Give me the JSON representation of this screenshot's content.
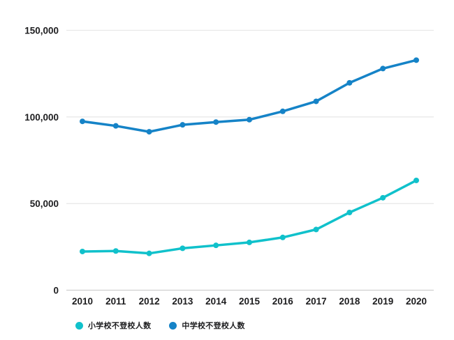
{
  "chart_data": {
    "type": "line",
    "title": "",
    "xlabel": "",
    "ylabel": "",
    "x": [
      "2010",
      "2011",
      "2012",
      "2013",
      "2014",
      "2015",
      "2016",
      "2017",
      "2018",
      "2019",
      "2020"
    ],
    "series": [
      {
        "name": "小学校不登校人数",
        "color": "#10c1cb",
        "values": [
          22327,
          22622,
          21243,
          24175,
          25864,
          27583,
          30448,
          35032,
          44841,
          53350,
          63350
        ]
      },
      {
        "name": "中学校不登校人数",
        "color": "#1583c7",
        "values": [
          97428,
          94836,
          91446,
          95442,
          97033,
          98408,
          103235,
          108999,
          119687,
          127922,
          132777
        ]
      }
    ],
    "ylim": [
      0,
      150000
    ],
    "yticks": [
      0,
      50000,
      100000,
      150000
    ],
    "grid": true,
    "grid_color": "#e8e8e8",
    "zero_line_color": "#cfcfcf",
    "text_color": "#1d1d1f",
    "legend_position": "bottom",
    "marker": "circle"
  }
}
